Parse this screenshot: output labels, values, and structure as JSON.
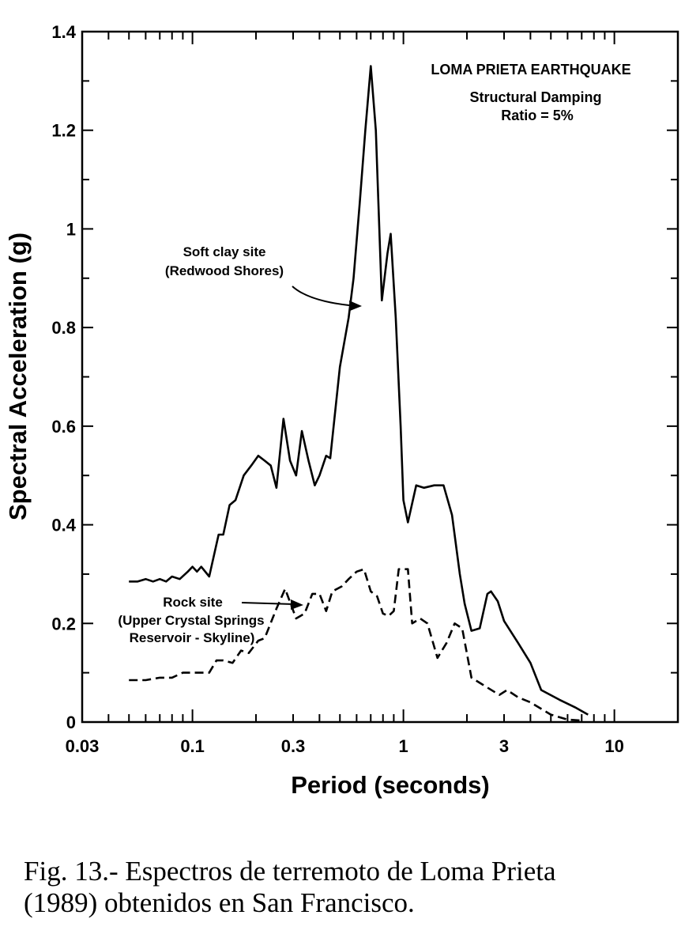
{
  "chart_data": {
    "type": "line",
    "xscale": "log",
    "xlim": [
      0.03,
      20
    ],
    "ylim": [
      0,
      1.4
    ],
    "xlabel": "Period (seconds)",
    "ylabel": "Spectral Acceleration (g)",
    "x_ticks": [
      {
        "value": 0.03,
        "label": "0.03"
      },
      {
        "value": 0.1,
        "label": "0.1"
      },
      {
        "value": 0.3,
        "label": "0.3"
      },
      {
        "value": 1,
        "label": "1"
      },
      {
        "value": 3,
        "label": "3"
      },
      {
        "value": 10,
        "label": "10"
      }
    ],
    "y_ticks": [
      {
        "value": 0,
        "label": "0"
      },
      {
        "value": 0.2,
        "label": "0.2"
      },
      {
        "value": 0.4,
        "label": "0.4"
      },
      {
        "value": 0.6,
        "label": "0.6"
      },
      {
        "value": 0.8,
        "label": "0.8"
      },
      {
        "value": 1.0,
        "label": "1"
      },
      {
        "value": 1.2,
        "label": "1.2"
      },
      {
        "value": 1.4,
        "label": "1.4"
      }
    ],
    "grid": false,
    "annotations": {
      "title_lines": [
        "LOMA PRIETA EARTHQUAKE",
        "Structural Damping",
        "Ratio = 5%"
      ],
      "soft_clay_lines": [
        "Soft clay site",
        "(Redwood Shores)"
      ],
      "rock_lines": [
        "Rock site",
        "(Upper Crystal Springs",
        "Reservoir - Skyline)"
      ]
    },
    "series": [
      {
        "style": "solid",
        "points": [
          [
            0.05,
            0.285
          ],
          [
            0.055,
            0.285
          ],
          [
            0.06,
            0.29
          ],
          [
            0.065,
            0.285
          ],
          [
            0.07,
            0.29
          ],
          [
            0.075,
            0.285
          ],
          [
            0.08,
            0.295
          ],
          [
            0.087,
            0.29
          ],
          [
            0.095,
            0.305
          ],
          [
            0.1,
            0.315
          ],
          [
            0.105,
            0.305
          ],
          [
            0.11,
            0.315
          ],
          [
            0.12,
            0.295
          ],
          [
            0.133,
            0.38
          ],
          [
            0.14,
            0.38
          ],
          [
            0.15,
            0.44
          ],
          [
            0.16,
            0.45
          ],
          [
            0.175,
            0.5
          ],
          [
            0.19,
            0.52
          ],
          [
            0.205,
            0.54
          ],
          [
            0.22,
            0.53
          ],
          [
            0.235,
            0.52
          ],
          [
            0.25,
            0.475
          ],
          [
            0.27,
            0.615
          ],
          [
            0.29,
            0.53
          ],
          [
            0.31,
            0.5
          ],
          [
            0.33,
            0.59
          ],
          [
            0.355,
            0.53
          ],
          [
            0.38,
            0.48
          ],
          [
            0.4,
            0.5
          ],
          [
            0.43,
            0.54
          ],
          [
            0.45,
            0.535
          ],
          [
            0.5,
            0.72
          ],
          [
            0.55,
            0.82
          ],
          [
            0.58,
            0.9
          ],
          [
            0.62,
            1.05
          ],
          [
            0.66,
            1.2
          ],
          [
            0.7,
            1.33
          ],
          [
            0.74,
            1.2
          ],
          [
            0.79,
            0.855
          ],
          [
            0.84,
            0.95
          ],
          [
            0.87,
            0.99
          ],
          [
            0.92,
            0.82
          ],
          [
            0.97,
            0.6
          ],
          [
            1.0,
            0.45
          ],
          [
            1.05,
            0.405
          ],
          [
            1.15,
            0.48
          ],
          [
            1.25,
            0.475
          ],
          [
            1.4,
            0.48
          ],
          [
            1.55,
            0.48
          ],
          [
            1.7,
            0.42
          ],
          [
            1.85,
            0.3
          ],
          [
            1.95,
            0.24
          ],
          [
            2.1,
            0.185
          ],
          [
            2.3,
            0.19
          ],
          [
            2.5,
            0.26
          ],
          [
            2.6,
            0.265
          ],
          [
            2.8,
            0.245
          ],
          [
            3.0,
            0.205
          ],
          [
            3.5,
            0.16
          ],
          [
            4.0,
            0.12
          ],
          [
            4.5,
            0.065
          ],
          [
            5.5,
            0.045
          ],
          [
            6.5,
            0.03
          ],
          [
            7.5,
            0.015
          ]
        ]
      },
      {
        "style": "dashed",
        "points": [
          [
            0.05,
            0.085
          ],
          [
            0.06,
            0.085
          ],
          [
            0.07,
            0.09
          ],
          [
            0.08,
            0.09
          ],
          [
            0.09,
            0.1
          ],
          [
            0.1,
            0.1
          ],
          [
            0.12,
            0.1
          ],
          [
            0.13,
            0.125
          ],
          [
            0.14,
            0.125
          ],
          [
            0.155,
            0.12
          ],
          [
            0.17,
            0.145
          ],
          [
            0.185,
            0.14
          ],
          [
            0.205,
            0.165
          ],
          [
            0.22,
            0.17
          ],
          [
            0.25,
            0.23
          ],
          [
            0.275,
            0.27
          ],
          [
            0.31,
            0.21
          ],
          [
            0.34,
            0.22
          ],
          [
            0.37,
            0.26
          ],
          [
            0.4,
            0.26
          ],
          [
            0.43,
            0.225
          ],
          [
            0.46,
            0.265
          ],
          [
            0.51,
            0.275
          ],
          [
            0.55,
            0.29
          ],
          [
            0.6,
            0.305
          ],
          [
            0.65,
            0.31
          ],
          [
            0.7,
            0.265
          ],
          [
            0.75,
            0.255
          ],
          [
            0.8,
            0.22
          ],
          [
            0.85,
            0.215
          ],
          [
            0.9,
            0.225
          ],
          [
            0.95,
            0.31
          ],
          [
            1.05,
            0.31
          ],
          [
            1.1,
            0.2
          ],
          [
            1.2,
            0.21
          ],
          [
            1.3,
            0.2
          ],
          [
            1.45,
            0.13
          ],
          [
            1.6,
            0.16
          ],
          [
            1.75,
            0.2
          ],
          [
            1.9,
            0.19
          ],
          [
            2.1,
            0.09
          ],
          [
            2.5,
            0.07
          ],
          [
            2.85,
            0.055
          ],
          [
            3.1,
            0.065
          ],
          [
            3.5,
            0.05
          ],
          [
            4.0,
            0.04
          ],
          [
            5.0,
            0.015
          ],
          [
            6.0,
            0.005
          ],
          [
            7.0,
            0.003
          ]
        ]
      }
    ]
  },
  "caption": {
    "line1": "Fig. 13.- Espectros de terremoto de Loma Prieta",
    "line2": "(1989) obtenidos en San Francisco."
  }
}
